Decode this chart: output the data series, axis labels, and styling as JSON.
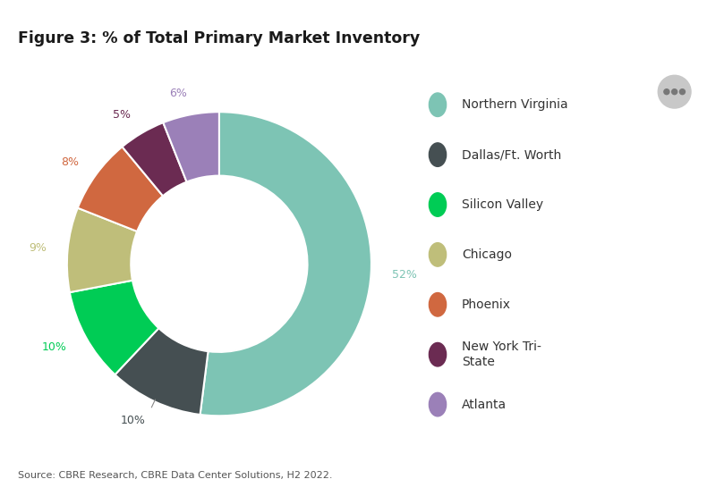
{
  "title": "Figure 3: % of Total Primary Market Inventory",
  "source": "Source: CBRE Research, CBRE Data Center Solutions, H2 2022.",
  "slices": [
    {
      "label": "Northern Virginia",
      "value": 52,
      "color": "#7DC4B4",
      "text_color": "#7DC4B4",
      "pct_label": "52%"
    },
    {
      "label": "Dallas/Ft. Worth",
      "value": 10,
      "color": "#454F52",
      "text_color": "#454F52",
      "pct_label": "10%"
    },
    {
      "label": "Silicon Valley",
      "value": 10,
      "color": "#00CC55",
      "text_color": "#00CC55",
      "pct_label": "10%"
    },
    {
      "label": "Chicago",
      "value": 9,
      "color": "#BFBE7A",
      "text_color": "#BFBE7A",
      "pct_label": "9%"
    },
    {
      "label": "Phoenix",
      "value": 8,
      "color": "#D06840",
      "text_color": "#D06840",
      "pct_label": "8%"
    },
    {
      "label": "New York Tri-\nState",
      "value": 5,
      "color": "#6B2B52",
      "text_color": "#6B2B52",
      "pct_label": "5%"
    },
    {
      "label": "Atlanta",
      "value": 6,
      "color": "#9B80B8",
      "text_color": "#9B80B8",
      "pct_label": "6%"
    }
  ],
  "bg_gray": "#EBEBEB",
  "bg_white": "#FFFFFF",
  "title_fontsize": 12.5,
  "legend_fontsize": 10,
  "label_fontsize": 9,
  "source_fontsize": 8,
  "separator_color": "#CCCCCC"
}
